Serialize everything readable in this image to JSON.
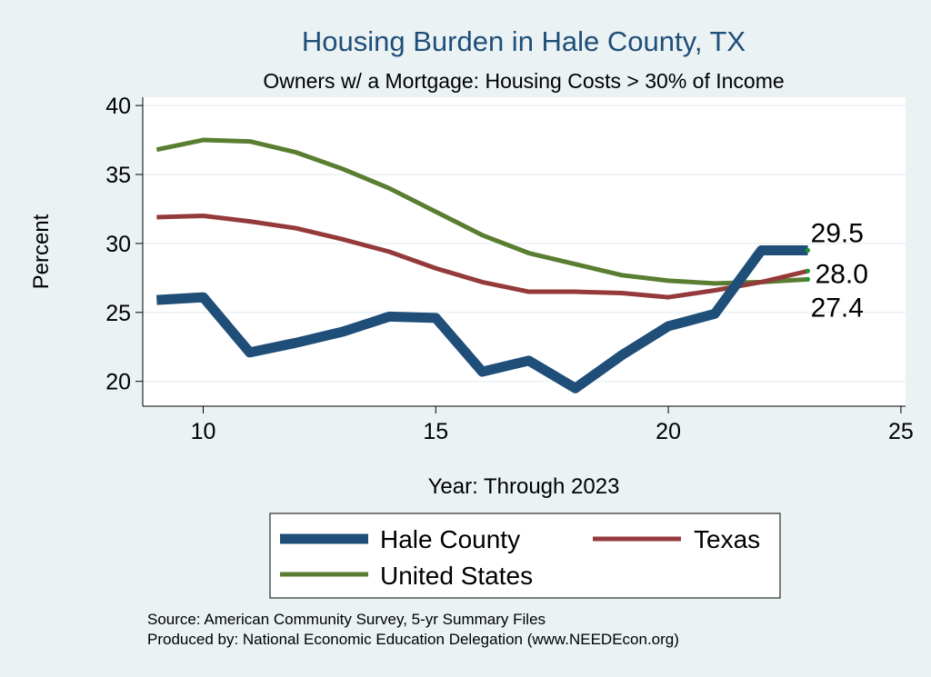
{
  "chart_data": {
    "type": "line",
    "title": "Housing Burden in Hale County, TX",
    "subtitle": "Owners w/ a Mortgage: Housing Costs > 30% of Income",
    "xlabel": "Year: Through 2023",
    "ylabel": "Percent",
    "xlim": [
      8.7,
      25.1
    ],
    "ylim": [
      18.2,
      40.6
    ],
    "xticks": [
      10,
      15,
      20,
      25
    ],
    "yticks": [
      20,
      25,
      30,
      35,
      40
    ],
    "grid": "horizontal",
    "series": [
      {
        "name": "Hale County",
        "color": "#1f4e79",
        "width": 11,
        "end_label": "29.5",
        "x": [
          9,
          10,
          11,
          12,
          13,
          14,
          15,
          16,
          17,
          18,
          19,
          20,
          21,
          22,
          23
        ],
        "values": [
          25.9,
          26.1,
          22.1,
          22.8,
          23.6,
          24.7,
          24.6,
          20.7,
          21.5,
          19.5,
          21.9,
          24.0,
          24.9,
          29.5,
          29.5
        ]
      },
      {
        "name": "Texas",
        "color": "#953a3b",
        "width": 5,
        "end_label": "28.0",
        "x": [
          9,
          10,
          11,
          12,
          13,
          14,
          15,
          16,
          17,
          18,
          19,
          20,
          21,
          22,
          23
        ],
        "values": [
          31.9,
          32.0,
          31.6,
          31.1,
          30.3,
          29.4,
          28.2,
          27.2,
          26.5,
          26.5,
          26.4,
          26.1,
          26.6,
          27.2,
          28.0
        ]
      },
      {
        "name": "United States",
        "color": "#5a7e31",
        "width": 5,
        "end_label": "27.4",
        "x": [
          9,
          10,
          11,
          12,
          13,
          14,
          15,
          16,
          17,
          18,
          19,
          20,
          21,
          22,
          23
        ],
        "values": [
          36.8,
          37.5,
          37.4,
          36.6,
          35.4,
          34.0,
          32.3,
          30.6,
          29.3,
          28.5,
          27.7,
          27.3,
          27.1,
          27.2,
          27.4
        ]
      }
    ],
    "legend": {
      "position": "bottom",
      "entries": [
        "Hale County",
        "Texas",
        "United States"
      ]
    }
  },
  "source": {
    "line1": "Source: American Community Survey, 5-yr Summary Files",
    "line2": "Produced by: National Economic Education Delegation (www.NEEDEcon.org)"
  }
}
